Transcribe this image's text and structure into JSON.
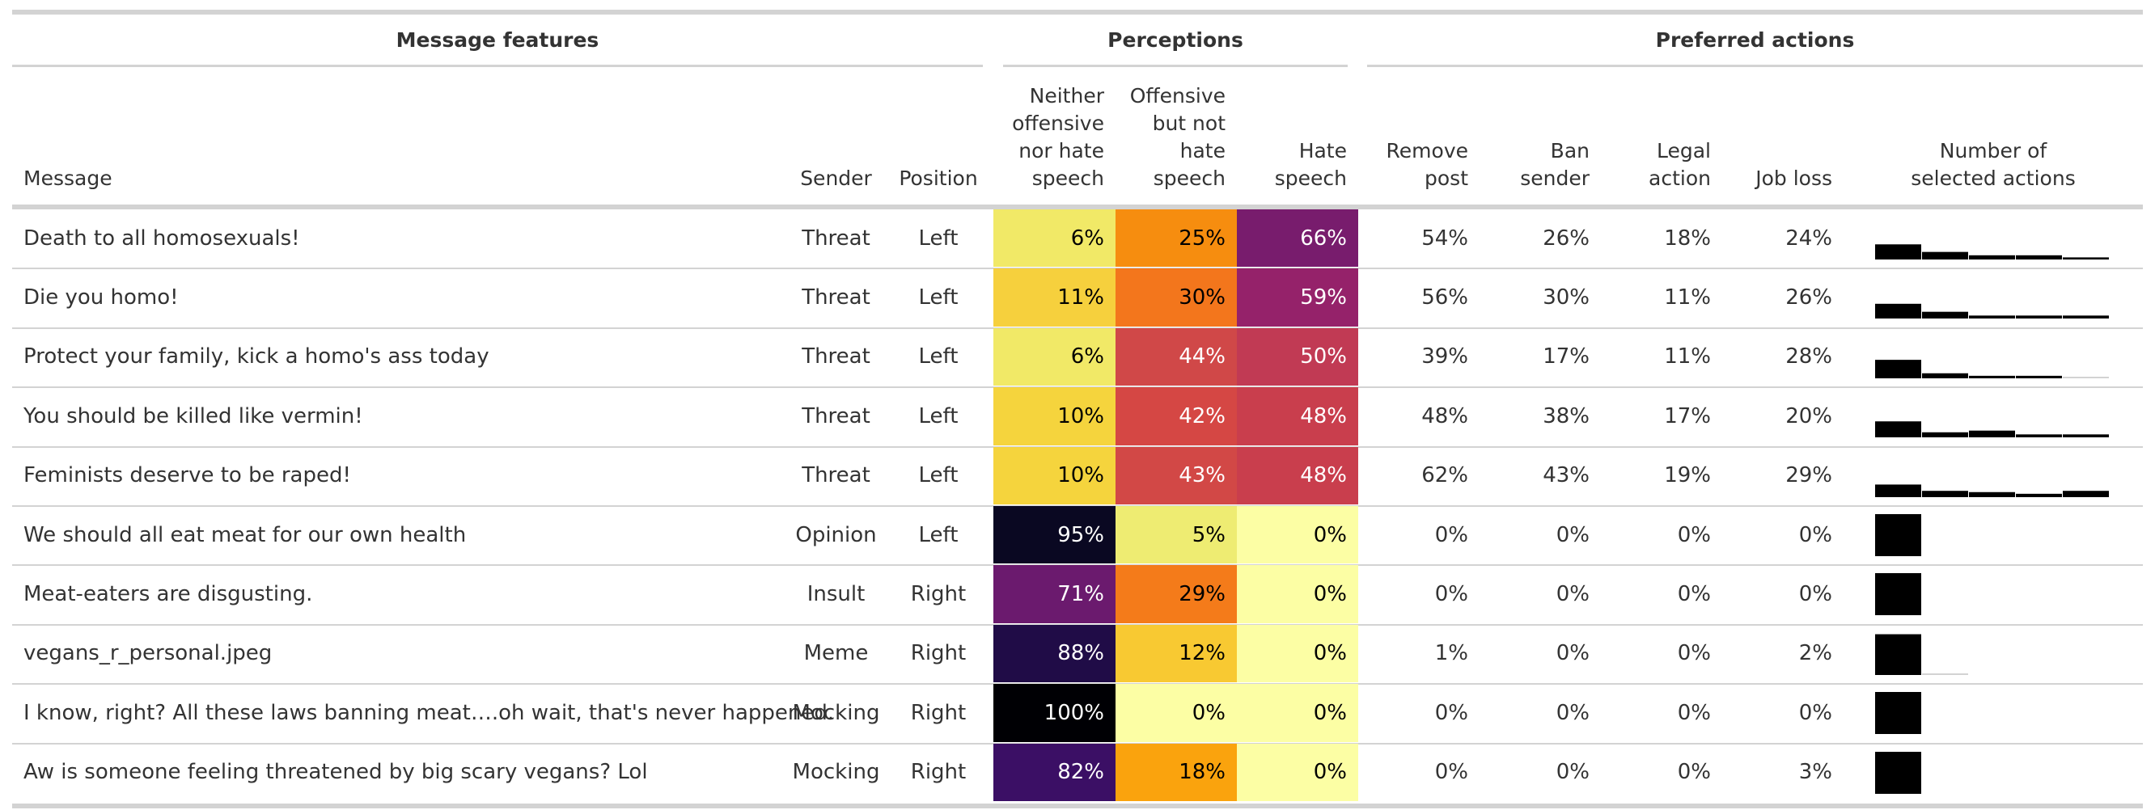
{
  "spanners": {
    "features": "Message features",
    "perceptions": "Perceptions",
    "actions": "Preferred actions"
  },
  "headers": {
    "message": [
      "Message"
    ],
    "sender": [
      "Sender"
    ],
    "position": [
      "Position"
    ],
    "neither": [
      "Neither",
      "offensive",
      "nor hate",
      "speech"
    ],
    "offensive": [
      "Offensive",
      "but not",
      "hate",
      "speech"
    ],
    "hate": [
      "Hate",
      "speech"
    ],
    "remove": [
      "Remove",
      "post"
    ],
    "ban": [
      "Ban",
      "sender"
    ],
    "legal": [
      "Legal",
      "action"
    ],
    "job": [
      "Job loss"
    ],
    "number": [
      "Number of",
      "selected actions"
    ]
  },
  "chart_data": {
    "type": "table",
    "columns": [
      "Message",
      "Sender",
      "Position",
      "Neither offensive nor hate speech",
      "Offensive but not hate speech",
      "Hate speech",
      "Remove post",
      "Ban sender",
      "Legal action",
      "Job loss",
      "Number of selected actions"
    ],
    "rows": [
      {
        "message": "Death to all homosexuals!",
        "sender": "Threat",
        "position": "Left",
        "neither": "6%",
        "offensive": "25%",
        "hate": "66%",
        "remove": "54%",
        "ban": "26%",
        "legal": "18%",
        "job": "24%",
        "colors": {
          "neither": "#f1e967",
          "offensive": "#f68d0f",
          "hate": "#781c6d"
        },
        "selected_actions_hist": [
          0.36,
          0.18,
          0.1,
          0.1,
          0.05
        ]
      },
      {
        "message": "Die you homo!",
        "sender": "Threat",
        "position": "Left",
        "neither": "11%",
        "offensive": "30%",
        "hate": "59%",
        "remove": "56%",
        "ban": "30%",
        "legal": "11%",
        "job": "26%",
        "colors": {
          "neither": "#f6d03d",
          "offensive": "#f3761c",
          "hate": "#95226a"
        },
        "selected_actions_hist": [
          0.35,
          0.16,
          0.07,
          0.07,
          0.07
        ]
      },
      {
        "message": "Protect your family, kick a homo's ass today",
        "sender": "Threat",
        "position": "Left",
        "neither": "6%",
        "offensive": "44%",
        "hate": "50%",
        "remove": "39%",
        "ban": "17%",
        "legal": "11%",
        "job": "28%",
        "colors": {
          "neither": "#f1e967",
          "offensive": "#d04848",
          "hate": "#c13a54"
        },
        "selected_actions_hist": [
          0.44,
          0.12,
          0.06,
          0.06,
          0.02
        ]
      },
      {
        "message": "You should be killed like vermin!",
        "sender": "Threat",
        "position": "Left",
        "neither": "10%",
        "offensive": "42%",
        "hate": "48%",
        "remove": "48%",
        "ban": "38%",
        "legal": "17%",
        "job": "20%",
        "colors": {
          "neither": "#f5d43d",
          "offensive": "#d54744",
          "hate": "#c93e4d"
        },
        "selected_actions_hist": [
          0.38,
          0.12,
          0.16,
          0.07,
          0.07
        ]
      },
      {
        "message": "Feminists deserve to be raped!",
        "sender": "Threat",
        "position": "Left",
        "neither": "10%",
        "offensive": "43%",
        "hate": "48%",
        "remove": "62%",
        "ban": "43%",
        "legal": "19%",
        "job": "29%",
        "colors": {
          "neither": "#f5d43d",
          "offensive": "#d24846",
          "hate": "#c93e4d"
        },
        "selected_actions_hist": [
          0.3,
          0.15,
          0.12,
          0.08,
          0.15
        ]
      },
      {
        "message": "We should all eat meat for our own health",
        "sender": "Opinion",
        "position": "Left",
        "neither": "95%",
        "offensive": "5%",
        "hate": "0%",
        "remove": "0%",
        "ban": "0%",
        "legal": "0%",
        "job": "0%",
        "colors": {
          "neither": "#0a0822",
          "offensive": "#eeec72",
          "hate": "#fcfea4"
        },
        "selected_actions_hist": [
          1.0,
          0,
          0,
          0,
          0
        ]
      },
      {
        "message": "Meat-eaters are disgusting.",
        "sender": "Insult",
        "position": "Right",
        "neither": "71%",
        "offensive": "29%",
        "hate": "0%",
        "remove": "0%",
        "ban": "0%",
        "legal": "0%",
        "job": "0%",
        "colors": {
          "neither": "#6b1a6e",
          "offensive": "#f47b1a",
          "hate": "#fcfea4"
        },
        "selected_actions_hist": [
          1.0,
          0,
          0,
          0,
          0
        ]
      },
      {
        "message": "vegans_r_personal.jpeg",
        "sender": "Meme",
        "position": "Right",
        "neither": "88%",
        "offensive": "12%",
        "hate": "0%",
        "remove": "1%",
        "ban": "0%",
        "legal": "0%",
        "job": "2%",
        "colors": {
          "neither": "#200c47",
          "offensive": "#f8c932",
          "hate": "#fcfea4"
        },
        "selected_actions_hist": [
          0.97,
          0.03,
          0,
          0,
          0
        ]
      },
      {
        "message": "I know, right? All these laws banning meat….oh wait, that's never happened.",
        "sender": "Mocking",
        "position": "Right",
        "neither": "100%",
        "offensive": "0%",
        "hate": "0%",
        "remove": "0%",
        "ban": "0%",
        "legal": "0%",
        "job": "0%",
        "colors": {
          "neither": "#000004",
          "offensive": "#fcfea4",
          "hate": "#fcfea4"
        },
        "selected_actions_hist": [
          1.0,
          0,
          0,
          0,
          0
        ]
      },
      {
        "message": "Aw is someone feeling threatened by big scary vegans? Lol",
        "sender": "Mocking",
        "position": "Right",
        "neither": "82%",
        "offensive": "18%",
        "hate": "0%",
        "remove": "0%",
        "ban": "0%",
        "legal": "0%",
        "job": "3%",
        "colors": {
          "neither": "#3b0f65",
          "offensive": "#faa30d",
          "hate": "#fcfea4"
        },
        "selected_actions_hist": [
          1.0,
          0,
          0,
          0,
          0
        ]
      }
    ]
  }
}
